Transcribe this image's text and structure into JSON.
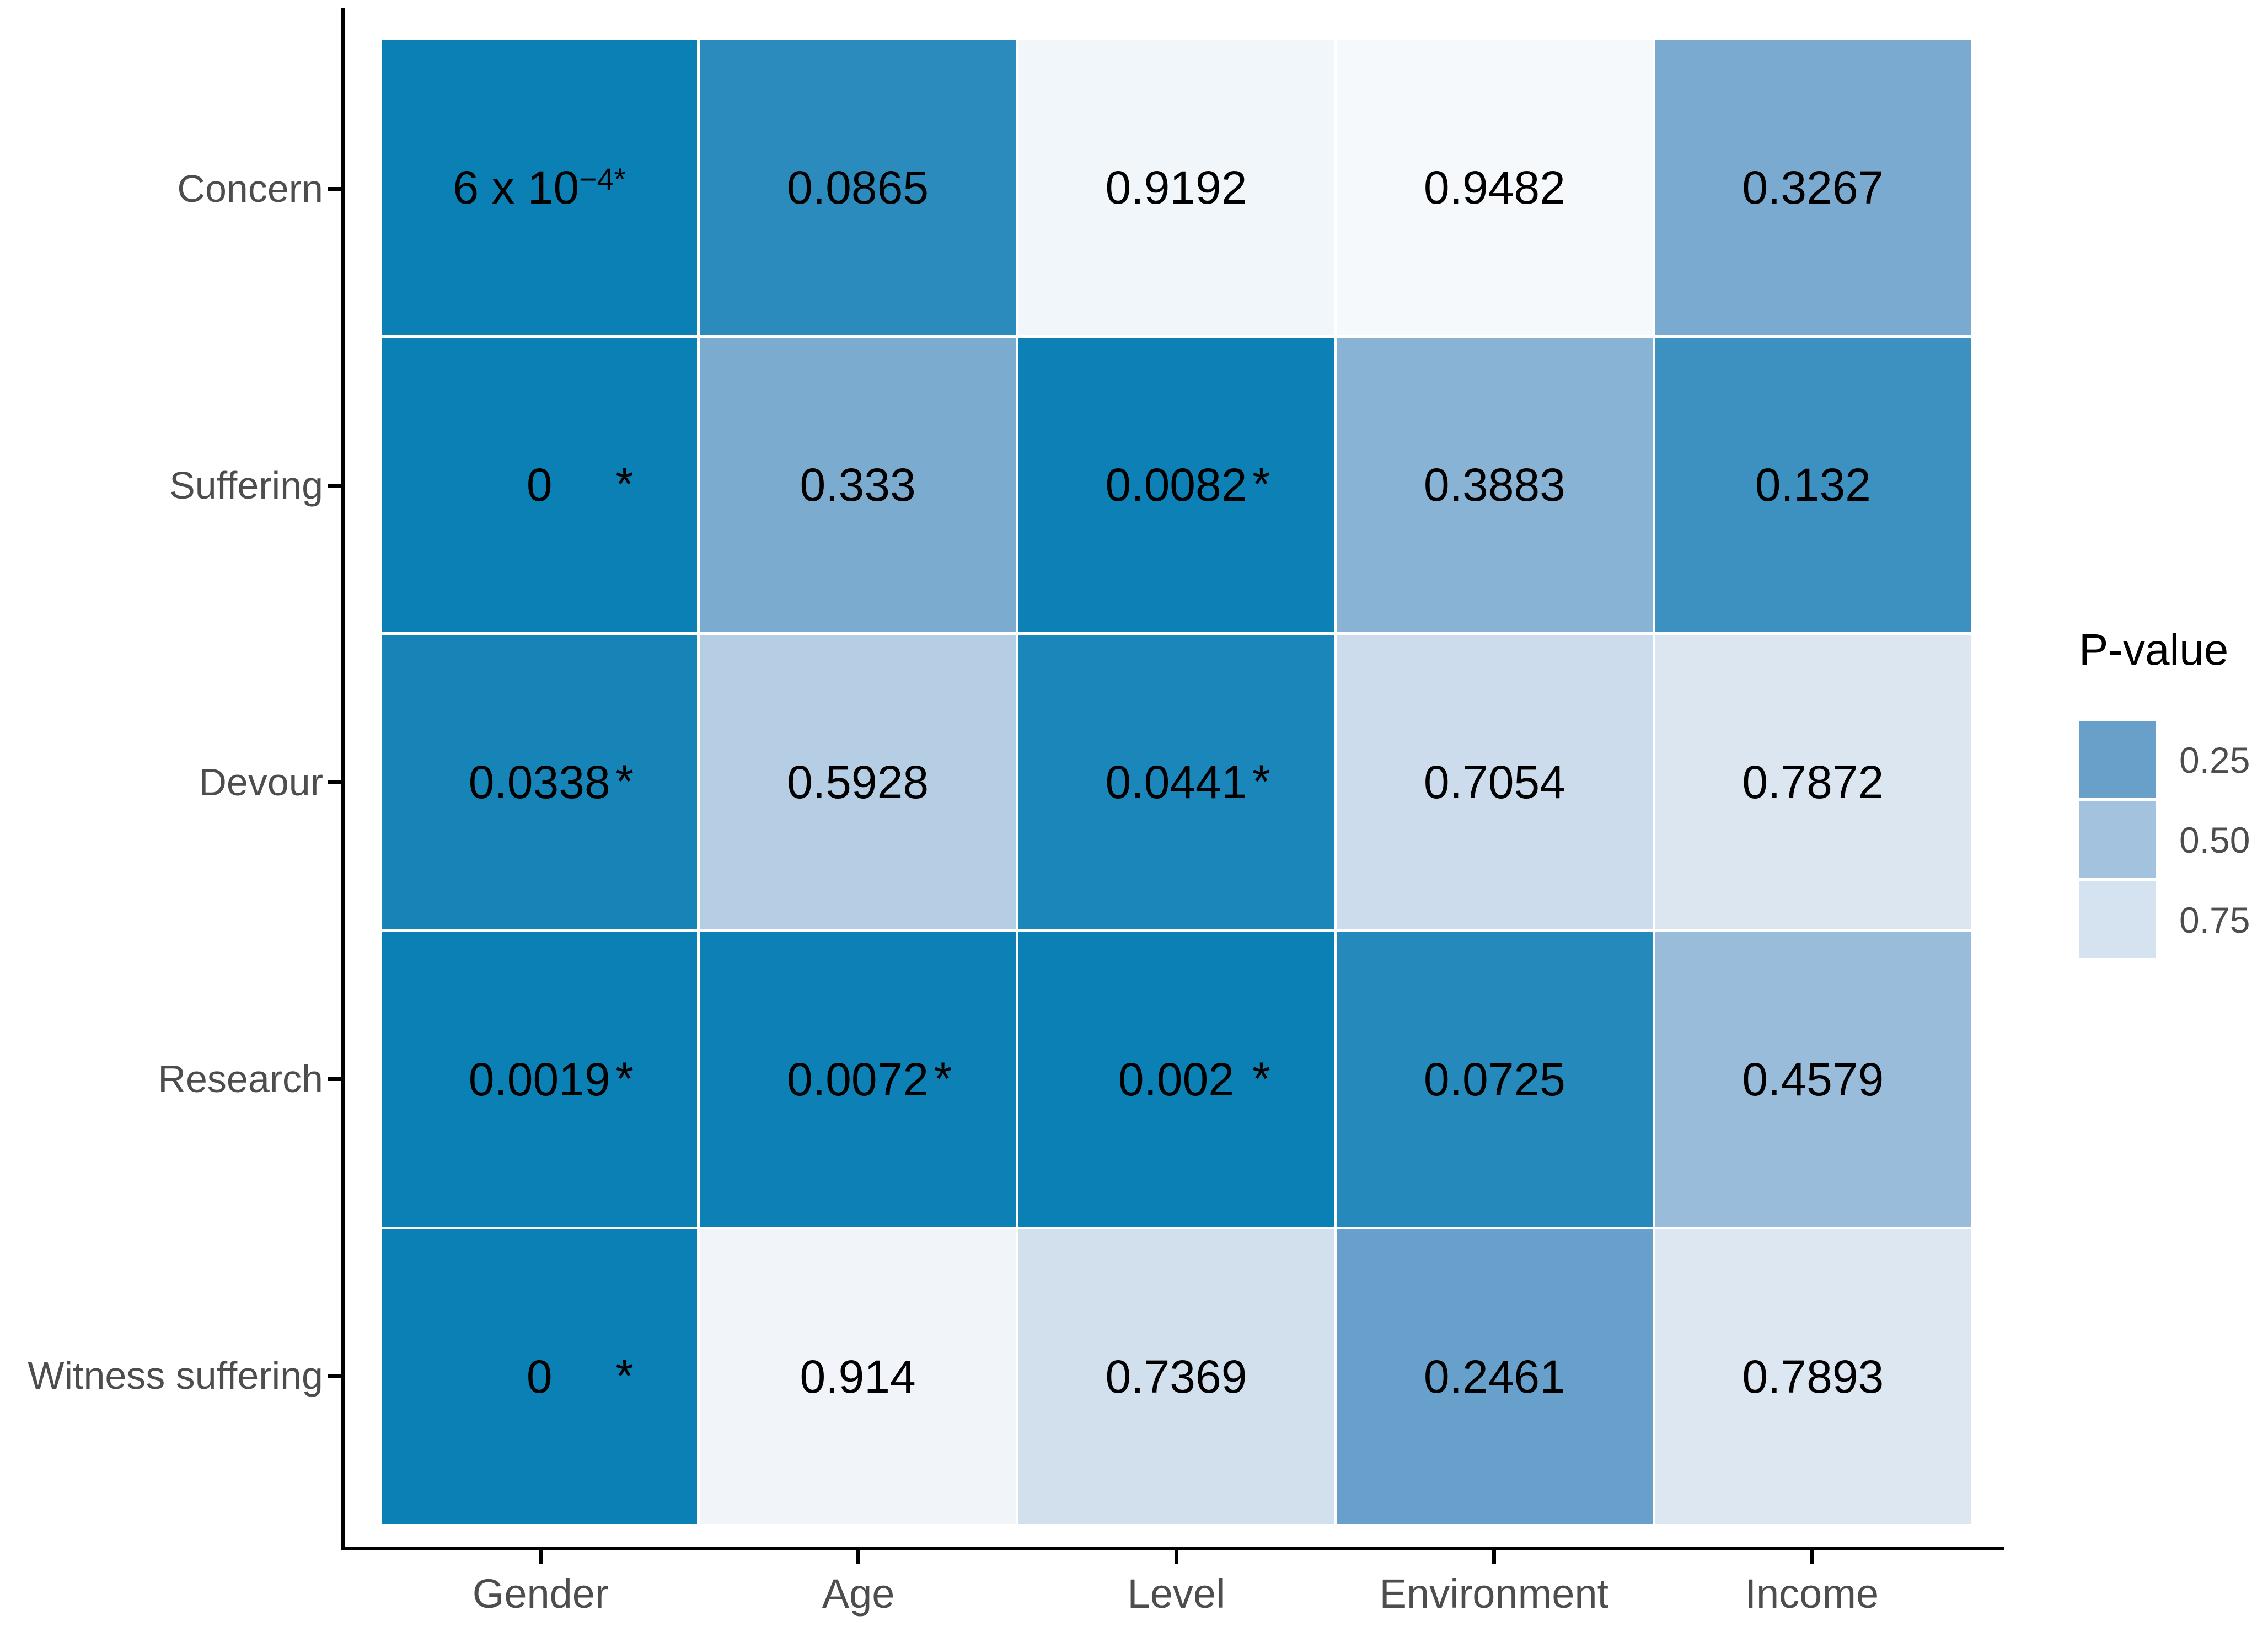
{
  "chart_data": {
    "type": "heatmap",
    "title": "",
    "x_categories": [
      "Gender",
      "Age",
      "Level",
      "Environment",
      "Income"
    ],
    "y_categories": [
      "Concern",
      "Suffering",
      "Devour",
      "Research",
      "Witness suffering"
    ],
    "cells": [
      [
        {
          "t": "6 x 10",
          "sup": "−4*",
          "v": 0.0006
        },
        {
          "t": "0.0865",
          "v": 0.0865
        },
        {
          "t": "0.9192",
          "v": 0.9192
        },
        {
          "t": "0.9482",
          "v": 0.9482
        },
        {
          "t": "0.3267",
          "v": 0.3267
        }
      ],
      [
        {
          "t": "0",
          "star": true,
          "v": 0
        },
        {
          "t": "0.333",
          "v": 0.333
        },
        {
          "t": "0.0082",
          "star": true,
          "v": 0.0082
        },
        {
          "t": "0.3883",
          "v": 0.3883
        },
        {
          "t": "0.132",
          "v": 0.132
        }
      ],
      [
        {
          "t": "0.0338",
          "star": true,
          "v": 0.0338
        },
        {
          "t": "0.5928",
          "v": 0.5928
        },
        {
          "t": "0.0441",
          "star": true,
          "v": 0.0441
        },
        {
          "t": "0.7054",
          "v": 0.7054
        },
        {
          "t": "0.7872",
          "v": 0.7872
        }
      ],
      [
        {
          "t": "0.0019",
          "star": true,
          "v": 0.0019
        },
        {
          "t": "0.0072",
          "star": true,
          "v": 0.0072
        },
        {
          "t": "0.002",
          "star": true,
          "v": 0.002
        },
        {
          "t": "0.0725",
          "v": 0.0725
        },
        {
          "t": "0.4579",
          "v": 0.4579
        }
      ],
      [
        {
          "t": "0",
          "star": true,
          "v": 0
        },
        {
          "t": "0.914",
          "v": 0.914
        },
        {
          "t": "0.7369",
          "v": 0.7369
        },
        {
          "t": "0.2461",
          "v": 0.2461
        },
        {
          "t": "0.7893",
          "v": 0.7893
        }
      ]
    ],
    "significance_marker": "*",
    "legend": {
      "title": "P-value",
      "tick_labels": [
        "0.25",
        "0.50",
        "0.75"
      ],
      "tick_values": [
        0.25,
        0.5,
        0.75
      ],
      "position": "right"
    },
    "palette": {
      "stops": [
        [
          0,
          "#0a80b5"
        ],
        [
          0.25,
          "#68a0ca"
        ],
        [
          0.5,
          "#a3c2dd"
        ],
        [
          0.75,
          "#d5e2ef"
        ],
        [
          1,
          "#ffffff"
        ]
      ]
    },
    "layout": {
      "axis_color": "#000000",
      "axis_label_color": "#4d4d4d",
      "cell_text_color": "#000000",
      "grid": false,
      "gap_color": "#ffffff"
    }
  }
}
